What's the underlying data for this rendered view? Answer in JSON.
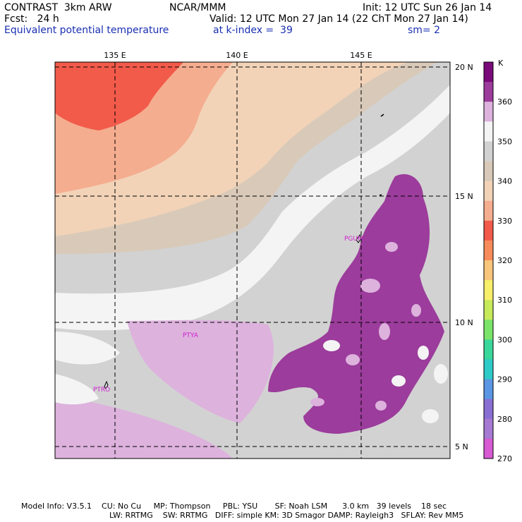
{
  "header": {
    "model": "CONTRAST  3km ARW",
    "org": "NCAR/MMM",
    "init": "Init: 12 UTC Sun 26 Jan 14",
    "fcst": "Fcst:   24 h",
    "valid": "Valid: 12 UTC Mon 27 Jan 14 (22 ChT Mon 27 Jan 14)",
    "field": "Equivalent potential temperature",
    "level": "at k-index =  39",
    "smooth": "sm= 2"
  },
  "map": {
    "lon_labels": [
      "135 E",
      "140 E",
      "145 E"
    ],
    "lat_labels": [
      "20 N",
      "15 N",
      "10 N",
      "5 N"
    ],
    "stations": [
      {
        "id": "PGUM",
        "lon": 144.8,
        "lat": 13.5
      },
      {
        "id": "PTYA",
        "lon": 138.1,
        "lat": 9.5
      },
      {
        "id": "PTRO",
        "lon": 134.5,
        "lat": 7.3
      }
    ]
  },
  "colorbar": {
    "unit": "K",
    "labels": [
      "360",
      "350",
      "340",
      "330",
      "320",
      "310",
      "300",
      "290",
      "280",
      "270"
    ],
    "colors": [
      "#7a0a7a",
      "#9c3c9c",
      "#ddb2dd",
      "#f4f4f4",
      "#d2d2d2",
      "#d9c9b8",
      "#f2d3b8",
      "#f5ad8f",
      "#f25a4a",
      "#f78b5a",
      "#f9c57a",
      "#f7ee6a",
      "#c7ea5a",
      "#7ae36a",
      "#3ad79a",
      "#2ecac7",
      "#5a96e3",
      "#8a6fd3",
      "#a67ad3",
      "#d85ad3"
    ]
  },
  "footer": {
    "line1": "Model Info: V3.5.1    CU: No Cu     MP: Thompson     PBL: YSU       SF: Noah LSM      3.0 km   39 levels    18 sec",
    "line2": "LW: RRTMG    SW: RRTMG   DIFF: simple KM: 3D Smagor DAMP: Rayleigh3   SFLAY: Rev MM5"
  }
}
